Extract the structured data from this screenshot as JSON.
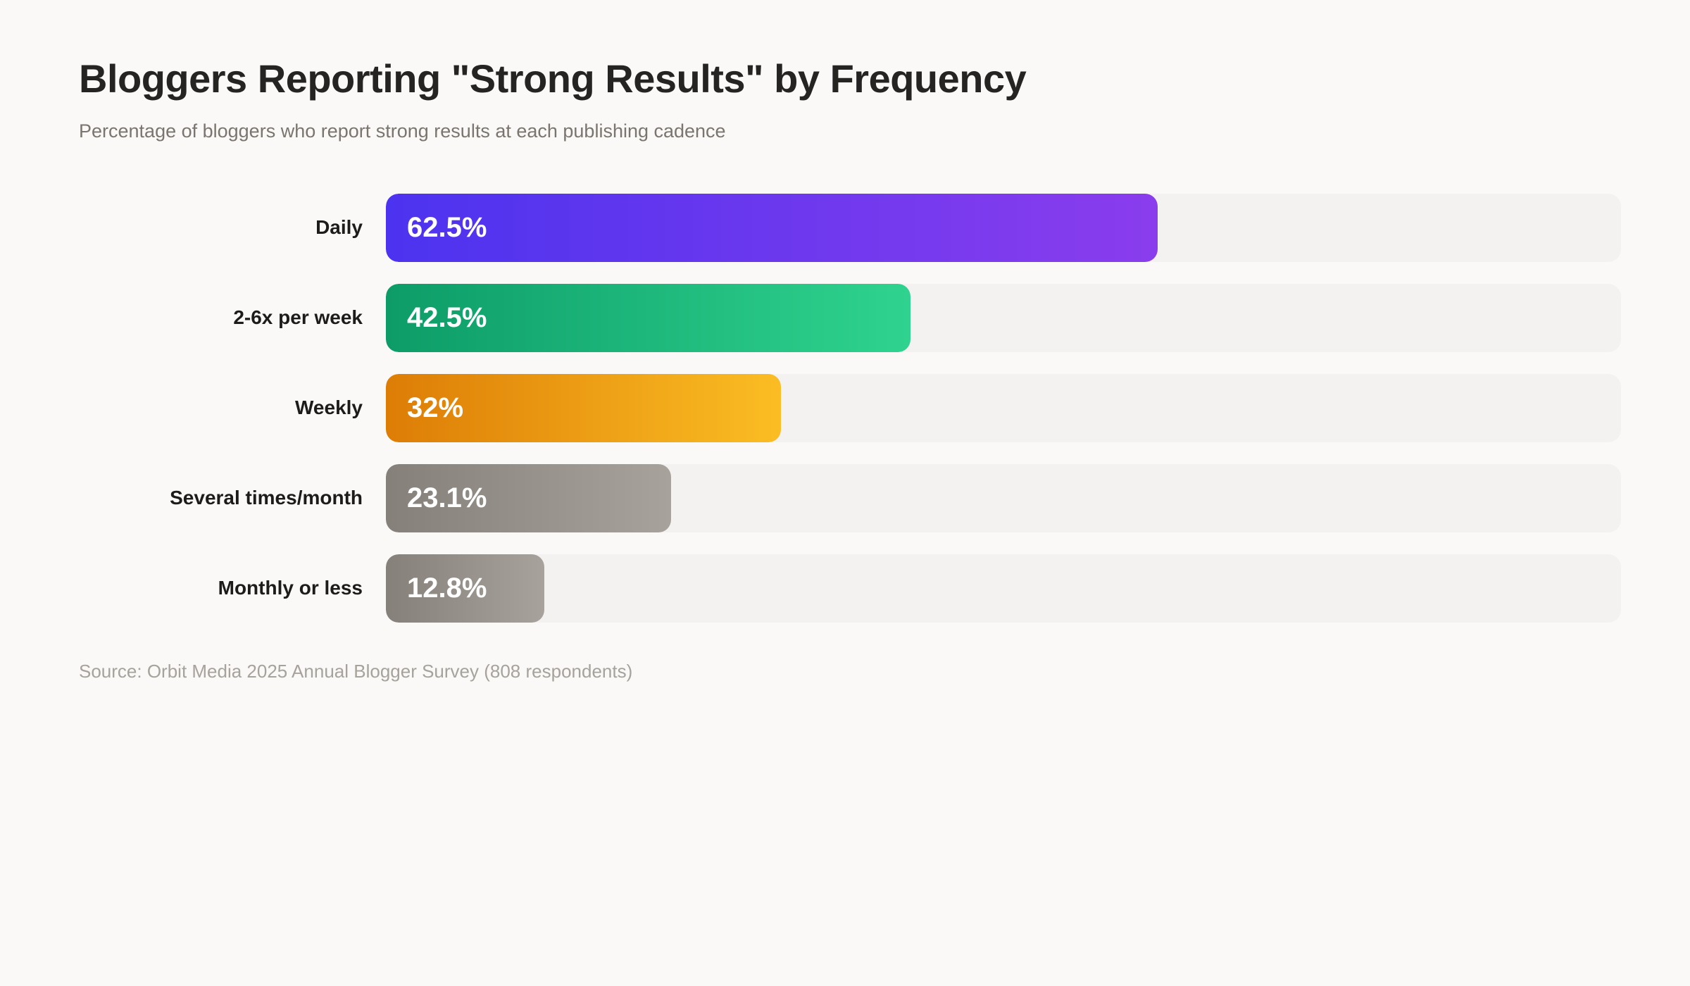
{
  "header": {
    "title": "Bloggers Reporting \"Strong Results\" by Frequency",
    "subtitle": "Percentage of bloggers who report strong results at each publishing cadence"
  },
  "chart_data": {
    "type": "bar",
    "orientation": "horizontal",
    "title": "Bloggers Reporting \"Strong Results\" by Frequency",
    "subtitle": "Percentage of bloggers who report strong results at each publishing cadence",
    "categories": [
      "Daily",
      "2-6x per week",
      "Weekly",
      "Several times/month",
      "Monthly or less"
    ],
    "values": [
      62.5,
      42.5,
      32,
      23.1,
      12.8
    ],
    "value_labels": [
      "62.5%",
      "42.5%",
      "32%",
      "23.1%",
      "12.8%"
    ],
    "xlim": [
      0,
      100
    ],
    "grid": false,
    "legend": false,
    "track_color": "#f3f2f0",
    "page_background": "#faf9f7",
    "bar_gradients": [
      {
        "from": "#4c33ef",
        "to": "#8a3ded"
      },
      {
        "from": "#0d9c68",
        "to": "#2fd38f"
      },
      {
        "from": "#dd7d06",
        "to": "#fbbd23"
      },
      {
        "from": "#86807a",
        "to": "#a8a29c"
      },
      {
        "from": "#86807a",
        "to": "#a8a29c"
      }
    ]
  },
  "footer": {
    "source": "Source: Orbit Media 2025 Annual Blogger Survey (808 respondents)"
  }
}
